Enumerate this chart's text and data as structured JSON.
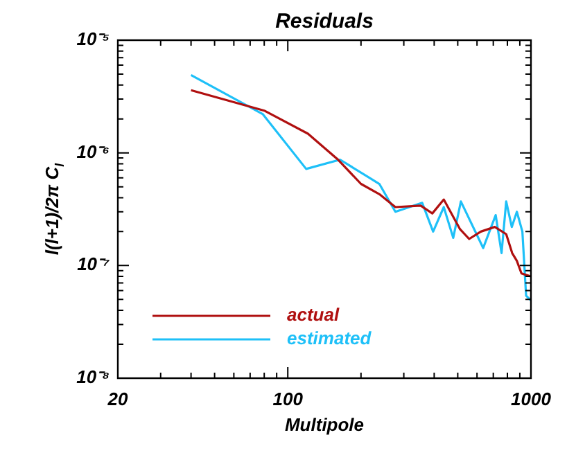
{
  "chart_data": {
    "type": "line",
    "title": "Residuals",
    "xlabel": "Multipole",
    "ylabel": "l(l+1)/2π C$_{l}$",
    "log": "xy",
    "legend": "bottom left",
    "marker": "none",
    "line_style": "solid",
    "xlim": [
      20,
      1000
    ],
    "ylim": [
      1e-08,
      1e-05
    ],
    "xticks": [
      20,
      {
        "value": 30,
        "label": null
      },
      {
        "value": 40,
        "label": null
      },
      {
        "value": 50,
        "label": null
      },
      {
        "value": 60,
        "label": null
      },
      {
        "value": 70,
        "label": null
      },
      {
        "value": 80,
        "label": null
      },
      {
        "value": 90,
        "label": null
      },
      100,
      {
        "value": 200,
        "label": null
      },
      {
        "value": 300,
        "label": null
      },
      {
        "value": 400,
        "label": null
      },
      {
        "value": 500,
        "label": null
      },
      {
        "value": 600,
        "label": null
      },
      {
        "value": 700,
        "label": null
      },
      {
        "value": 800,
        "label": null
      },
      {
        "value": 900,
        "label": null
      },
      1000
    ],
    "yticks": [
      {
        "value": 1e-08,
        "label": "10⁻⁸"
      },
      {
        "value": 1e-07,
        "label": "10⁻⁷"
      },
      {
        "value": 1e-06,
        "label": "10⁻⁶"
      },
      {
        "value": 1e-05,
        "label": "10⁻⁵"
      }
    ],
    "series": [
      {
        "name": "actual",
        "color": "#b01010",
        "x": [
          40,
          80,
          121,
          160,
          200,
          238,
          277,
          352,
          393,
          438,
          511,
          557,
          622,
          710,
          791,
          837,
          875,
          914,
          1000
        ],
        "values": [
          3.6e-06,
          2.37e-06,
          1.48e-06,
          8.8e-07,
          5.3e-07,
          4.3e-07,
          3.3e-07,
          3.4e-07,
          2.9e-07,
          3.85e-07,
          2.1e-07,
          1.72e-07,
          2e-07,
          2.2e-07,
          1.9e-07,
          1.29e-07,
          1.1e-07,
          8.5e-08,
          8e-08
        ]
      },
      {
        "name": "estimated",
        "color": "#1ec0f8",
        "x": [
          40,
          79,
          119,
          164,
          238,
          277,
          357,
          396,
          438,
          479,
          515,
          636,
          716,
          757,
          791,
          834,
          875,
          922,
          955,
          1000
        ],
        "values": [
          4.9e-06,
          2.2e-06,
          7.2e-07,
          8.7e-07,
          5.3e-07,
          3e-07,
          3.6e-07,
          2e-07,
          3.3e-07,
          1.76e-07,
          3.7e-07,
          1.43e-07,
          2.8e-07,
          1.29e-07,
          3.7e-07,
          2.2e-07,
          3e-07,
          2e-07,
          5.4e-08,
          4.9e-08
        ]
      }
    ]
  }
}
